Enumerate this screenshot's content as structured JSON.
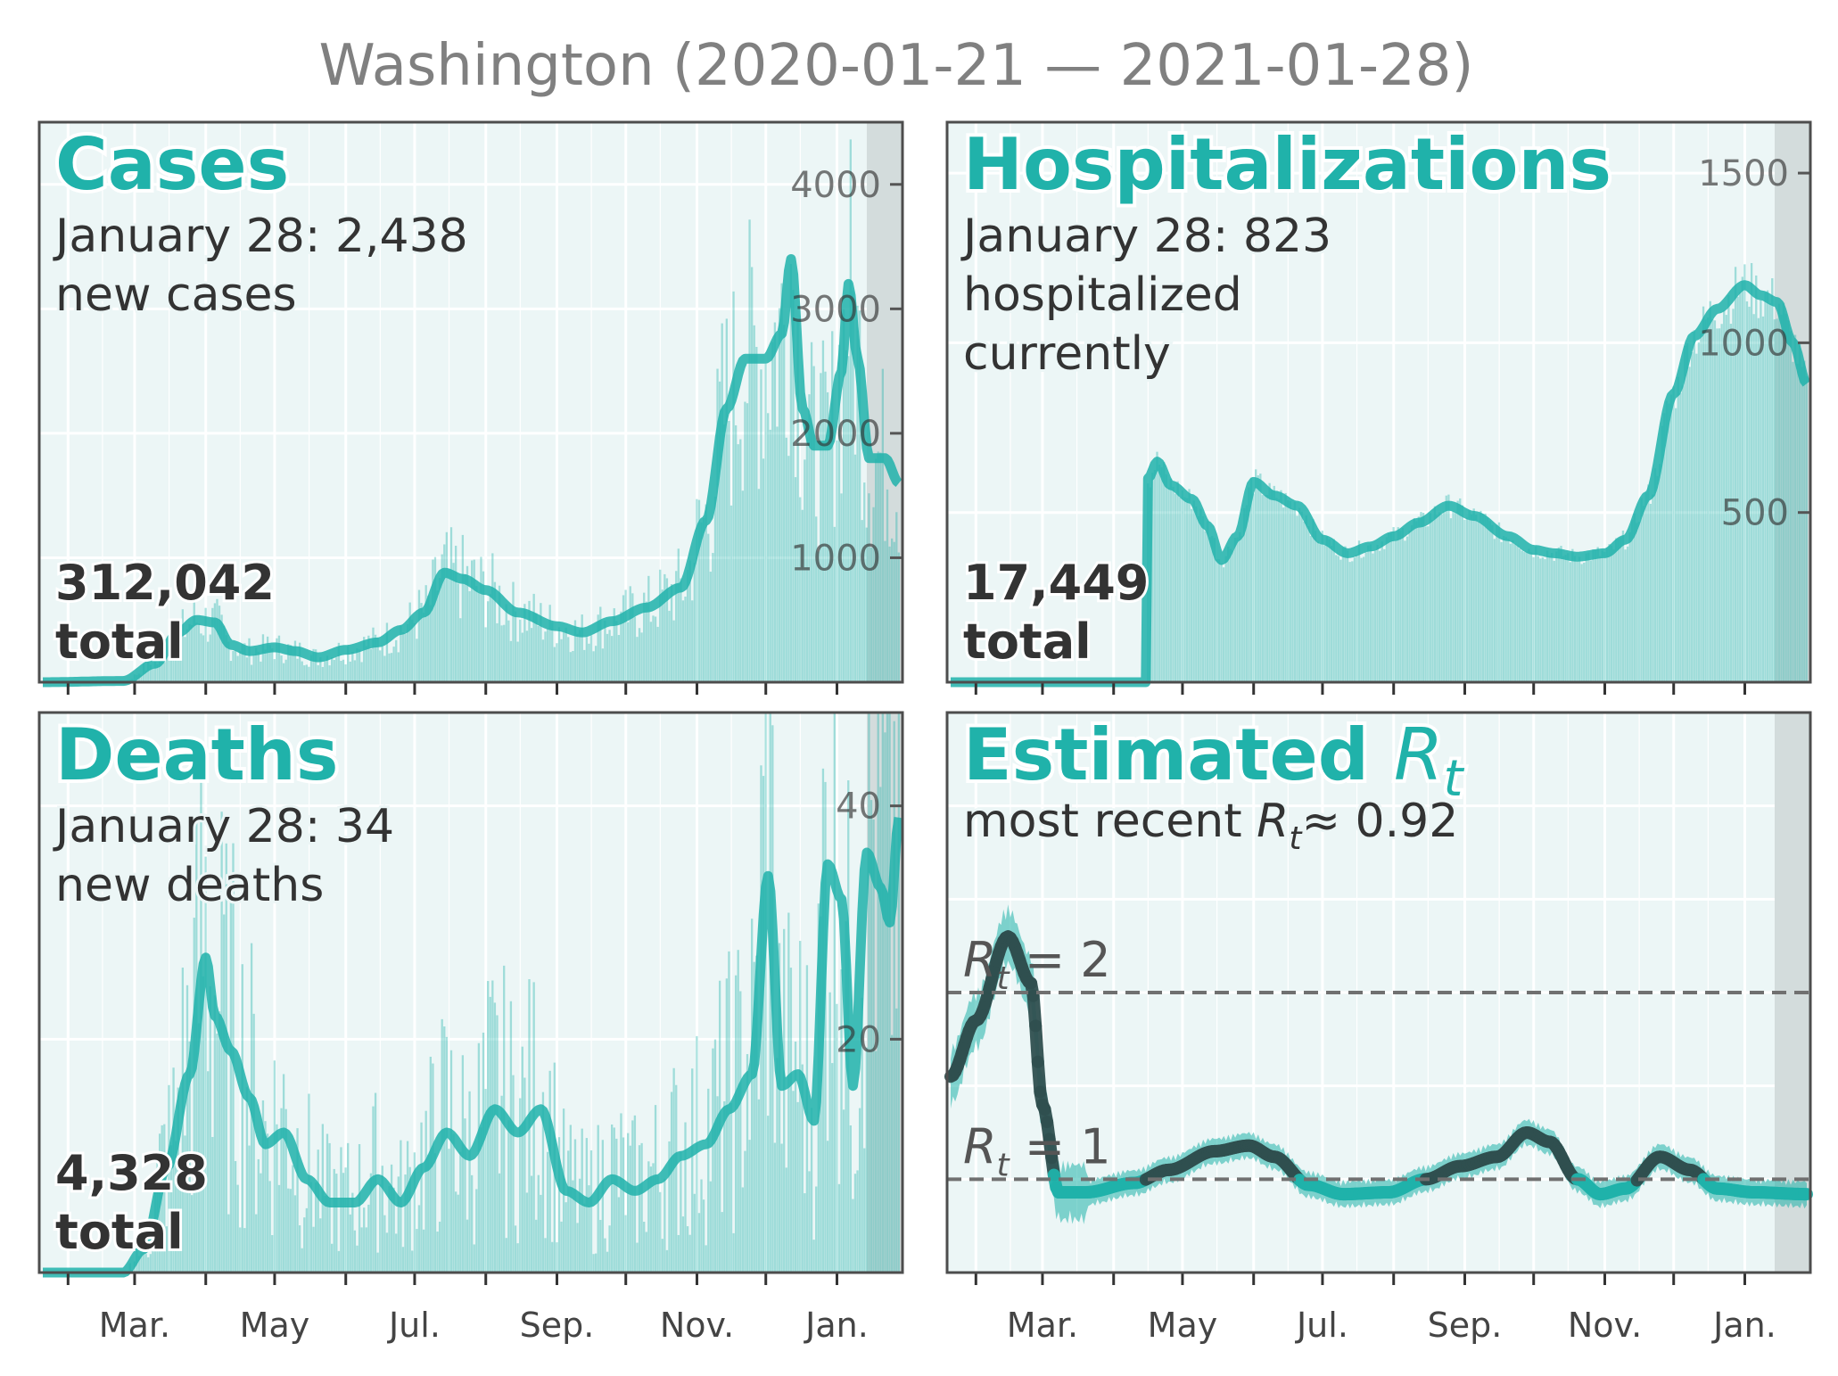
{
  "figure": {
    "title": "Washington (2020-01-21 — 2021-01-28)"
  },
  "colors": {
    "accent": "#20b2aa",
    "panel_bg": "#ecf6f6",
    "forecast_shade": "#d3dcdc",
    "dark_line": "#2f4f4f",
    "text": "#333333"
  },
  "x_axis": {
    "tick_labels": [
      "Mar.",
      "May",
      "Jul.",
      "Sep.",
      "Nov.",
      "Jan."
    ]
  },
  "chart_data": [
    {
      "id": "cases",
      "type": "bar",
      "title": "Cases",
      "subtitle_line1": "January 28: 2,438",
      "subtitle_line2": "new cases",
      "total_value": "312,042",
      "total_label": "total",
      "ylim": [
        0,
        4500
      ],
      "y_ticks": [
        "1000",
        "2000",
        "3000",
        "4000"
      ],
      "y_tick_values": [
        1000,
        2000,
        3000,
        4000
      ],
      "x_range": [
        "2020-01-21",
        "2021-01-28"
      ],
      "series_7day_avg_anchors": [
        [
          "2020-01-21",
          0
        ],
        [
          "2020-02-25",
          10
        ],
        [
          "2020-03-10",
          150
        ],
        [
          "2020-03-20",
          400
        ],
        [
          "2020-03-28",
          500
        ],
        [
          "2020-04-05",
          480
        ],
        [
          "2020-04-12",
          300
        ],
        [
          "2020-04-20",
          250
        ],
        [
          "2020-05-01",
          280
        ],
        [
          "2020-05-10",
          250
        ],
        [
          "2020-05-20",
          200
        ],
        [
          "2020-06-01",
          260
        ],
        [
          "2020-06-15",
          320
        ],
        [
          "2020-06-25",
          420
        ],
        [
          "2020-07-05",
          560
        ],
        [
          "2020-07-14",
          880
        ],
        [
          "2020-07-22",
          830
        ],
        [
          "2020-08-01",
          740
        ],
        [
          "2020-08-15",
          560
        ],
        [
          "2020-09-01",
          450
        ],
        [
          "2020-09-12",
          400
        ],
        [
          "2020-09-25",
          490
        ],
        [
          "2020-10-10",
          600
        ],
        [
          "2020-10-25",
          760
        ],
        [
          "2020-11-05",
          1300
        ],
        [
          "2020-11-14",
          2200
        ],
        [
          "2020-11-22",
          2600
        ],
        [
          "2020-12-01",
          2600
        ],
        [
          "2020-12-08",
          2800
        ],
        [
          "2020-12-12",
          3400
        ],
        [
          "2020-12-17",
          2200
        ],
        [
          "2020-12-22",
          1900
        ],
        [
          "2020-12-28",
          1900
        ],
        [
          "2021-01-03",
          2500
        ],
        [
          "2021-01-06",
          3200
        ],
        [
          "2021-01-10",
          2600
        ],
        [
          "2021-01-15",
          1800
        ],
        [
          "2021-01-22",
          1800
        ],
        [
          "2021-01-28",
          1600
        ]
      ]
    },
    {
      "id": "hospitalizations",
      "type": "bar",
      "title": "Hospitalizations",
      "subtitle_line1": "January 28: 823",
      "subtitle_line2": "hospitalized",
      "subtitle_line3": "currently",
      "total_value": "17,449",
      "total_label": "total",
      "ylim": [
        0,
        1650
      ],
      "y_ticks": [
        "500",
        "1000",
        "1500"
      ],
      "y_tick_values": [
        500,
        1000,
        1500
      ],
      "x_range": [
        "2020-01-21",
        "2021-01-28"
      ],
      "series_7day_avg_anchors": [
        [
          "2020-01-21",
          0
        ],
        [
          "2020-04-15",
          0
        ],
        [
          "2020-04-16",
          600
        ],
        [
          "2020-04-20",
          650
        ],
        [
          "2020-04-26",
          580
        ],
        [
          "2020-05-05",
          540
        ],
        [
          "2020-05-12",
          460
        ],
        [
          "2020-05-18",
          360
        ],
        [
          "2020-05-25",
          430
        ],
        [
          "2020-06-01",
          590
        ],
        [
          "2020-06-10",
          550
        ],
        [
          "2020-06-20",
          520
        ],
        [
          "2020-07-01",
          420
        ],
        [
          "2020-07-12",
          380
        ],
        [
          "2020-07-22",
          400
        ],
        [
          "2020-08-01",
          430
        ],
        [
          "2020-08-12",
          470
        ],
        [
          "2020-08-25",
          520
        ],
        [
          "2020-09-05",
          490
        ],
        [
          "2020-09-20",
          430
        ],
        [
          "2020-10-01",
          390
        ],
        [
          "2020-10-10",
          380
        ],
        [
          "2020-10-20",
          370
        ],
        [
          "2020-11-01",
          380
        ],
        [
          "2020-11-10",
          420
        ],
        [
          "2020-11-20",
          550
        ],
        [
          "2020-12-01",
          850
        ],
        [
          "2020-12-10",
          1020
        ],
        [
          "2020-12-20",
          1100
        ],
        [
          "2021-01-01",
          1170
        ],
        [
          "2021-01-08",
          1140
        ],
        [
          "2021-01-15",
          1120
        ],
        [
          "2021-01-22",
          1000
        ],
        [
          "2021-01-28",
          880
        ]
      ]
    },
    {
      "id": "deaths",
      "type": "bar",
      "title": "Deaths",
      "subtitle_line1": "January 28: 34",
      "subtitle_line2": "new deaths",
      "total_value": "4,328",
      "total_label": "total",
      "ylim": [
        0,
        48
      ],
      "y_ticks": [
        "20",
        "40"
      ],
      "y_tick_values": [
        20,
        40
      ],
      "x_range": [
        "2020-01-21",
        "2021-01-28"
      ],
      "series_7day_avg_anchors": [
        [
          "2020-01-21",
          0
        ],
        [
          "2020-02-25",
          0
        ],
        [
          "2020-03-05",
          2
        ],
        [
          "2020-03-15",
          9
        ],
        [
          "2020-03-25",
          17
        ],
        [
          "2020-04-01",
          27
        ],
        [
          "2020-04-05",
          22
        ],
        [
          "2020-04-12",
          19
        ],
        [
          "2020-04-20",
          15
        ],
        [
          "2020-04-27",
          11
        ],
        [
          "2020-05-05",
          12
        ],
        [
          "2020-05-15",
          8
        ],
        [
          "2020-05-25",
          6
        ],
        [
          "2020-06-05",
          6
        ],
        [
          "2020-06-15",
          8
        ],
        [
          "2020-06-25",
          6
        ],
        [
          "2020-07-05",
          9
        ],
        [
          "2020-07-15",
          12
        ],
        [
          "2020-07-25",
          10
        ],
        [
          "2020-08-05",
          14
        ],
        [
          "2020-08-15",
          12
        ],
        [
          "2020-08-25",
          14
        ],
        [
          "2020-09-05",
          7
        ],
        [
          "2020-09-15",
          6
        ],
        [
          "2020-09-25",
          8
        ],
        [
          "2020-10-05",
          7
        ],
        [
          "2020-10-15",
          8
        ],
        [
          "2020-10-25",
          10
        ],
        [
          "2020-11-05",
          11
        ],
        [
          "2020-11-15",
          14
        ],
        [
          "2020-11-25",
          17
        ],
        [
          "2020-12-02",
          34
        ],
        [
          "2020-12-08",
          16
        ],
        [
          "2020-12-15",
          17
        ],
        [
          "2020-12-22",
          13
        ],
        [
          "2020-12-28",
          35
        ],
        [
          "2021-01-03",
          32
        ],
        [
          "2021-01-08",
          16
        ],
        [
          "2021-01-14",
          36
        ],
        [
          "2021-01-20",
          33
        ],
        [
          "2021-01-24",
          30
        ],
        [
          "2021-01-28",
          39
        ]
      ]
    },
    {
      "id": "rt",
      "type": "line",
      "title": "Estimated",
      "title_symbol": "R",
      "title_subscript": "t",
      "subtitle_prefix": "most recent",
      "subtitle_symbol": "R",
      "subtitle_subscript": "t",
      "subtitle_value": "≈ 0.92",
      "ref_lines": [
        {
          "y": 2,
          "symbol": "R",
          "subscript": "t",
          "label_value": "= 2"
        },
        {
          "y": 1,
          "symbol": "R",
          "subscript": "t",
          "label_value": "= 1"
        }
      ],
      "ylim": [
        0.5,
        3.5
      ],
      "x_range": [
        "2020-01-21",
        "2021-01-28"
      ],
      "series_anchors": [
        [
          "2020-01-21",
          1.55
        ],
        [
          "2020-02-01",
          1.85
        ],
        [
          "2020-02-15",
          2.3
        ],
        [
          "2020-02-25",
          2.05
        ],
        [
          "2020-03-01",
          1.4
        ],
        [
          "2020-03-08",
          0.93
        ],
        [
          "2020-03-20",
          0.93
        ],
        [
          "2020-04-10",
          0.98
        ],
        [
          "2020-04-25",
          1.05
        ],
        [
          "2020-05-15",
          1.15
        ],
        [
          "2020-05-30",
          1.18
        ],
        [
          "2020-06-10",
          1.12
        ],
        [
          "2020-06-25",
          0.97
        ],
        [
          "2020-07-10",
          0.92
        ],
        [
          "2020-07-30",
          0.93
        ],
        [
          "2020-08-15",
          1.0
        ],
        [
          "2020-08-30",
          1.07
        ],
        [
          "2020-09-15",
          1.12
        ],
        [
          "2020-09-28",
          1.25
        ],
        [
          "2020-10-08",
          1.2
        ],
        [
          "2020-10-20",
          1.0
        ],
        [
          "2020-10-30",
          0.92
        ],
        [
          "2020-11-10",
          0.95
        ],
        [
          "2020-11-25",
          1.12
        ],
        [
          "2020-12-08",
          1.05
        ],
        [
          "2020-12-20",
          0.95
        ],
        [
          "2021-01-05",
          0.93
        ],
        [
          "2021-01-28",
          0.92
        ]
      ],
      "band_halfwidth": 0.06
    }
  ]
}
